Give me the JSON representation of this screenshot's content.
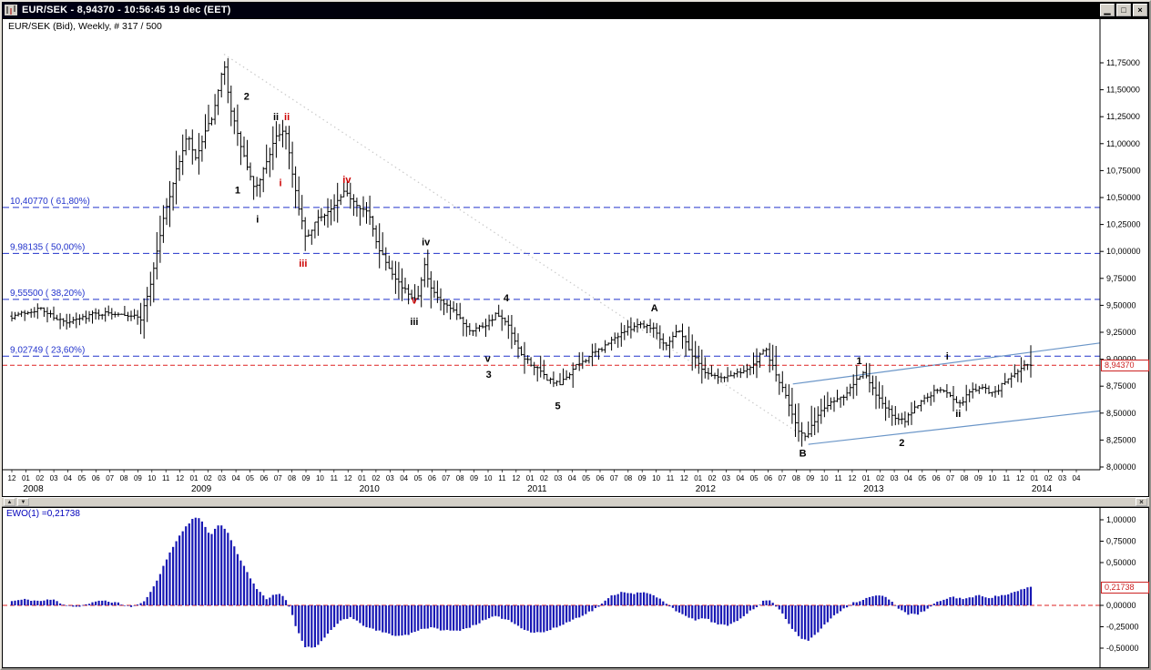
{
  "window": {
    "title": "EUR/SEK - 8,94370 - 10:56:45 19 dec (EET)",
    "buttons": [
      {
        "name": "minimize",
        "glyph": "▁"
      },
      {
        "name": "restore",
        "glyph": "□"
      },
      {
        "name": "close",
        "glyph": "×"
      }
    ]
  },
  "splitter": {
    "up": "▲",
    "down": "▼",
    "close": "×"
  },
  "chart_data": [
    {
      "type": "ohlc-bars",
      "header": "EUR/SEK (Bid), Weekly, # 317 / 500",
      "symbol": "EUR/SEK (Bid)",
      "timeframe": "Weekly",
      "bars_counter": "# 317 / 500",
      "n_bars": 317,
      "ylim": [
        7.97,
        11.97
      ],
      "current_price": 8.9437,
      "current_price_label": "8,94370",
      "last_bar": {
        "high": 9.13,
        "low": 8.83,
        "close": 8.9437
      },
      "colors": {
        "fib": "#2233cc",
        "current": "#dd2222",
        "bars": "#000000",
        "channel": "#6b96c8",
        "trend_dotted": "#c9c9c9"
      },
      "y_ticks": [
        {
          "value": 11.75,
          "label": "11,75000"
        },
        {
          "value": 11.5,
          "label": "11,50000"
        },
        {
          "value": 11.25,
          "label": "11,25000"
        },
        {
          "value": 11.0,
          "label": "11,00000"
        },
        {
          "value": 10.75,
          "label": "10,75000"
        },
        {
          "value": 10.5,
          "label": "10,50000"
        },
        {
          "value": 10.25,
          "label": "10,25000"
        },
        {
          "value": 10.0,
          "label": "10,00000"
        },
        {
          "value": 9.75,
          "label": "9,75000"
        },
        {
          "value": 9.5,
          "label": "9,50000"
        },
        {
          "value": 9.25,
          "label": "9,25000"
        },
        {
          "value": 9.0,
          "label": "9,00000"
        },
        {
          "value": 8.75,
          "label": "8,75000"
        },
        {
          "value": 8.5,
          "label": "8,50000"
        },
        {
          "value": 8.25,
          "label": "8,25000"
        },
        {
          "value": 8.0,
          "label": "8,00000"
        }
      ],
      "fib_levels": [
        {
          "price": 10.4077,
          "label": "10,40770 ( 61,80%)"
        },
        {
          "price": 9.98135,
          "label": "9,98135 ( 50,00%)"
        },
        {
          "price": 9.555,
          "label": "9,55500 ( 38,20%)"
        },
        {
          "price": 9.02749,
          "label": "9,02749 ( 23,60%)"
        }
      ],
      "x_months": [
        "12",
        "01",
        "02",
        "03",
        "04",
        "05",
        "06",
        "07",
        "08",
        "09",
        "10",
        "11",
        "12",
        "01",
        "02",
        "03",
        "04",
        "05",
        "06",
        "07",
        "08",
        "09",
        "10",
        "11",
        "12",
        "01",
        "02",
        "03",
        "04",
        "05",
        "06",
        "07",
        "08",
        "09",
        "10",
        "11",
        "12",
        "01",
        "02",
        "03",
        "04",
        "05",
        "06",
        "07",
        "08",
        "09",
        "10",
        "11",
        "12",
        "01",
        "02",
        "03",
        "04",
        "05",
        "06",
        "07",
        "08",
        "09",
        "10",
        "11",
        "12",
        "01",
        "02",
        "03",
        "04",
        "05",
        "06",
        "07",
        "08",
        "09",
        "10",
        "11",
        "12",
        "01",
        "02",
        "03",
        "04"
      ],
      "x_years": [
        {
          "label": "2008",
          "m": 1
        },
        {
          "label": "2009",
          "m": 13
        },
        {
          "label": "2010",
          "m": 25
        },
        {
          "label": "2011",
          "m": 37
        },
        {
          "label": "2012",
          "m": 49
        },
        {
          "label": "2013",
          "m": 61
        },
        {
          "label": "2014",
          "m": 73
        }
      ],
      "anchors": [
        [
          0,
          9.4
        ],
        [
          8.5,
          9.47
        ],
        [
          17,
          9.33
        ],
        [
          25,
          9.42
        ],
        [
          34,
          9.43
        ],
        [
          40,
          9.38
        ],
        [
          43,
          9.7
        ],
        [
          47,
          10.3
        ],
        [
          51,
          10.75
        ],
        [
          54.5,
          11.08
        ],
        [
          57,
          10.85
        ],
        [
          60,
          11.1
        ],
        [
          62.6,
          11.28
        ],
        [
          65.8,
          11.74
        ],
        [
          67.7,
          11.35
        ],
        [
          70,
          11.08
        ],
        [
          72.3,
          10.85
        ],
        [
          75.4,
          10.55
        ],
        [
          78.5,
          10.8
        ],
        [
          81.8,
          11.05
        ],
        [
          84.7,
          11.15
        ],
        [
          86.9,
          10.75
        ],
        [
          89.2,
          10.35
        ],
        [
          91.5,
          10.1
        ],
        [
          94.6,
          10.3
        ],
        [
          99.4,
          10.4
        ],
        [
          103.3,
          10.55
        ],
        [
          106.7,
          10.45
        ],
        [
          110.6,
          10.35
        ],
        [
          113.5,
          10.05
        ],
        [
          117.1,
          9.85
        ],
        [
          121.4,
          9.65
        ],
        [
          125.6,
          9.55
        ],
        [
          127.9,
          9.88
        ],
        [
          129.8,
          9.65
        ],
        [
          133.5,
          9.52
        ],
        [
          137.7,
          9.42
        ],
        [
          142.2,
          9.27
        ],
        [
          146.8,
          9.32
        ],
        [
          150.4,
          9.42
        ],
        [
          154.1,
          9.3
        ],
        [
          157.5,
          9.05
        ],
        [
          161.4,
          8.95
        ],
        [
          165.9,
          8.82
        ],
        [
          169.9,
          8.76
        ],
        [
          174.4,
          8.92
        ],
        [
          179.2,
          9.03
        ],
        [
          184,
          9.12
        ],
        [
          189.1,
          9.25
        ],
        [
          194.2,
          9.33
        ],
        [
          198.7,
          9.3
        ],
        [
          202.6,
          9.13
        ],
        [
          206.9,
          9.28
        ],
        [
          210.8,
          9.05
        ],
        [
          215.1,
          8.88
        ],
        [
          220.1,
          8.82
        ],
        [
          225.2,
          8.88
        ],
        [
          229.7,
          8.93
        ],
        [
          233.7,
          9.1
        ],
        [
          237.1,
          8.85
        ],
        [
          240.5,
          8.62
        ],
        [
          243.9,
          8.35
        ],
        [
          246.4,
          8.26
        ],
        [
          249.2,
          8.45
        ],
        [
          253.4,
          8.6
        ],
        [
          257.9,
          8.66
        ],
        [
          261.9,
          8.82
        ],
        [
          264.2,
          8.88
        ],
        [
          267,
          8.72
        ],
        [
          270.4,
          8.58
        ],
        [
          273.8,
          8.45
        ],
        [
          276.6,
          8.42
        ],
        [
          280,
          8.55
        ],
        [
          283.4,
          8.65
        ],
        [
          287.3,
          8.72
        ],
        [
          290.7,
          8.68
        ],
        [
          294.1,
          8.58
        ],
        [
          297.5,
          8.72
        ],
        [
          301.4,
          8.73
        ],
        [
          304.8,
          8.68
        ],
        [
          308.2,
          8.8
        ],
        [
          311.6,
          8.88
        ],
        [
          313.9,
          8.95
        ],
        [
          316,
          8.9437
        ]
      ],
      "wave_labels": [
        {
          "text": "1",
          "color": "#000000",
          "week": 70,
          "price": 10.57
        },
        {
          "text": "2",
          "color": "#000000",
          "week": 72.8,
          "price": 11.44
        },
        {
          "text": "i",
          "color": "#000000",
          "week": 76.2,
          "price": 10.3
        },
        {
          "text": "ii",
          "color": "#000000",
          "week": 81.9,
          "price": 11.25
        },
        {
          "text": "i",
          "color": "#cc0000",
          "week": 83.3,
          "price": 10.64
        },
        {
          "text": "ii",
          "color": "#cc0000",
          "week": 85.3,
          "price": 11.25
        },
        {
          "text": "iii",
          "color": "#cc0000",
          "week": 90.3,
          "price": 9.89
        },
        {
          "text": "iv",
          "color": "#cc0000",
          "week": 103.9,
          "price": 10.67
        },
        {
          "text": "v",
          "color": "#cc0000",
          "week": 124.8,
          "price": 9.55
        },
        {
          "text": "iii",
          "color": "#000000",
          "week": 124.8,
          "price": 9.35
        },
        {
          "text": "iv",
          "color": "#000000",
          "week": 128.4,
          "price": 10.09
        },
        {
          "text": "4",
          "color": "#000000",
          "week": 153.3,
          "price": 9.57
        },
        {
          "text": "v",
          "color": "#000000",
          "week": 147.6,
          "price": 9.01
        },
        {
          "text": "3",
          "color": "#000000",
          "week": 147.9,
          "price": 8.86
        },
        {
          "text": "5",
          "color": "#000000",
          "week": 169.3,
          "price": 8.57
        },
        {
          "text": "A",
          "color": "#000000",
          "week": 199.3,
          "price": 9.48
        },
        {
          "text": "B",
          "color": "#000000",
          "week": 245.3,
          "price": 8.13
        },
        {
          "text": "1",
          "color": "#000000",
          "week": 262.8,
          "price": 8.99
        },
        {
          "text": "2",
          "color": "#000000",
          "week": 276,
          "price": 8.23
        },
        {
          "text": "i",
          "color": "#000000",
          "week": 290.1,
          "price": 9.03
        },
        {
          "text": "ii",
          "color": "#000000",
          "week": 293.5,
          "price": 8.5
        }
      ],
      "trendline_dotted": {
        "from": [
          65.8,
          11.83
        ],
        "to": [
          246.3,
          8.27
        ]
      },
      "channel_lines": [
        {
          "from": [
            242.2,
            8.77
          ],
          "to": [
            337.4,
            9.15
          ]
        },
        {
          "from": [
            247,
            8.21
          ],
          "to": [
            337.4,
            8.52
          ]
        }
      ]
    },
    {
      "type": "bar",
      "header": "EWO(1) =0,21738",
      "name": "EWO(1)",
      "n_bars": 317,
      "current_value": 0.21738,
      "current_value_label": "0,21738",
      "colors": {
        "bars": "#1818b4",
        "zero_line": "#dd2222"
      },
      "ylim": [
        -0.6,
        1.1
      ],
      "y_ticks": [
        {
          "value": 1.0,
          "label": "1,00000"
        },
        {
          "value": 0.75,
          "label": "0,75000"
        },
        {
          "value": 0.5,
          "label": "0,50000"
        },
        {
          "value": 0.0,
          "label": "0,00000"
        },
        {
          "value": -0.25,
          "label": "-0,25000"
        },
        {
          "value": -0.5,
          "label": "-0,50000"
        }
      ],
      "anchors": [
        [
          0,
          0.05
        ],
        [
          4.2,
          0.07
        ],
        [
          8.5,
          0.05
        ],
        [
          12.7,
          0.07
        ],
        [
          15.5,
          0.02
        ],
        [
          19.8,
          -0.02
        ],
        [
          24,
          0.02
        ],
        [
          28.2,
          0.06
        ],
        [
          32.5,
          0.03
        ],
        [
          36.7,
          -0.02
        ],
        [
          40,
          0.02
        ],
        [
          42.3,
          0.1
        ],
        [
          45.7,
          0.35
        ],
        [
          49.4,
          0.65
        ],
        [
          53.1,
          0.88
        ],
        [
          56.4,
          1.03
        ],
        [
          58.7,
          1.0
        ],
        [
          61.5,
          0.82
        ],
        [
          64.3,
          0.95
        ],
        [
          66.6,
          0.88
        ],
        [
          69.4,
          0.65
        ],
        [
          72.8,
          0.4
        ],
        [
          76.2,
          0.18
        ],
        [
          79,
          0.07
        ],
        [
          81.3,
          0.12
        ],
        [
          83.5,
          0.14
        ],
        [
          85.8,
          0.02
        ],
        [
          88.1,
          -0.25
        ],
        [
          90.9,
          -0.48
        ],
        [
          93.7,
          -0.5
        ],
        [
          96.5,
          -0.4
        ],
        [
          99.4,
          -0.28
        ],
        [
          102.2,
          -0.17
        ],
        [
          105,
          -0.14
        ],
        [
          108.4,
          -0.22
        ],
        [
          111.8,
          -0.28
        ],
        [
          115.7,
          -0.32
        ],
        [
          119.7,
          -0.36
        ],
        [
          123.1,
          -0.34
        ],
        [
          126.4,
          -0.28
        ],
        [
          129.8,
          -0.26
        ],
        [
          133.8,
          -0.29
        ],
        [
          137.7,
          -0.3
        ],
        [
          141.7,
          -0.26
        ],
        [
          145.6,
          -0.19
        ],
        [
          149.6,
          -0.13
        ],
        [
          153.5,
          -0.16
        ],
        [
          157.5,
          -0.25
        ],
        [
          161.4,
          -0.32
        ],
        [
          165.4,
          -0.31
        ],
        [
          169.3,
          -0.25
        ],
        [
          173.3,
          -0.18
        ],
        [
          177.2,
          -0.11
        ],
        [
          180.6,
          -0.05
        ],
        [
          183.4,
          0.03
        ],
        [
          186.3,
          0.12
        ],
        [
          189.6,
          0.16
        ],
        [
          193,
          0.14
        ],
        [
          196.4,
          0.15
        ],
        [
          199.3,
          0.11
        ],
        [
          202.1,
          0.05
        ],
        [
          204.9,
          -0.03
        ],
        [
          208.3,
          -0.12
        ],
        [
          211.7,
          -0.17
        ],
        [
          215.1,
          -0.15
        ],
        [
          218.5,
          -0.22
        ],
        [
          221.8,
          -0.24
        ],
        [
          225.2,
          -0.17
        ],
        [
          228,
          -0.09
        ],
        [
          230.8,
          -0.03
        ],
        [
          233.7,
          0.07
        ],
        [
          235.9,
          0.04
        ],
        [
          238.8,
          -0.08
        ],
        [
          241.6,
          -0.25
        ],
        [
          244.4,
          -0.38
        ],
        [
          246.7,
          -0.42
        ],
        [
          249.5,
          -0.33
        ],
        [
          252.3,
          -0.22
        ],
        [
          255.1,
          -0.11
        ],
        [
          257.9,
          -0.04
        ],
        [
          260.8,
          0.03
        ],
        [
          263.6,
          0.06
        ],
        [
          266.4,
          0.1
        ],
        [
          269.2,
          0.12
        ],
        [
          272.1,
          0.07
        ],
        [
          274.9,
          -0.03
        ],
        [
          277.7,
          -0.1
        ],
        [
          280.5,
          -0.11
        ],
        [
          283.4,
          -0.06
        ],
        [
          286.2,
          0.02
        ],
        [
          289,
          0.07
        ],
        [
          291.8,
          0.1
        ],
        [
          294.6,
          0.08
        ],
        [
          297.5,
          0.09
        ],
        [
          300.3,
          0.12
        ],
        [
          303.1,
          0.09
        ],
        [
          305.9,
          0.11
        ],
        [
          308.8,
          0.13
        ],
        [
          311.6,
          0.16
        ],
        [
          313.9,
          0.19
        ],
        [
          316,
          0.21738
        ]
      ]
    }
  ]
}
